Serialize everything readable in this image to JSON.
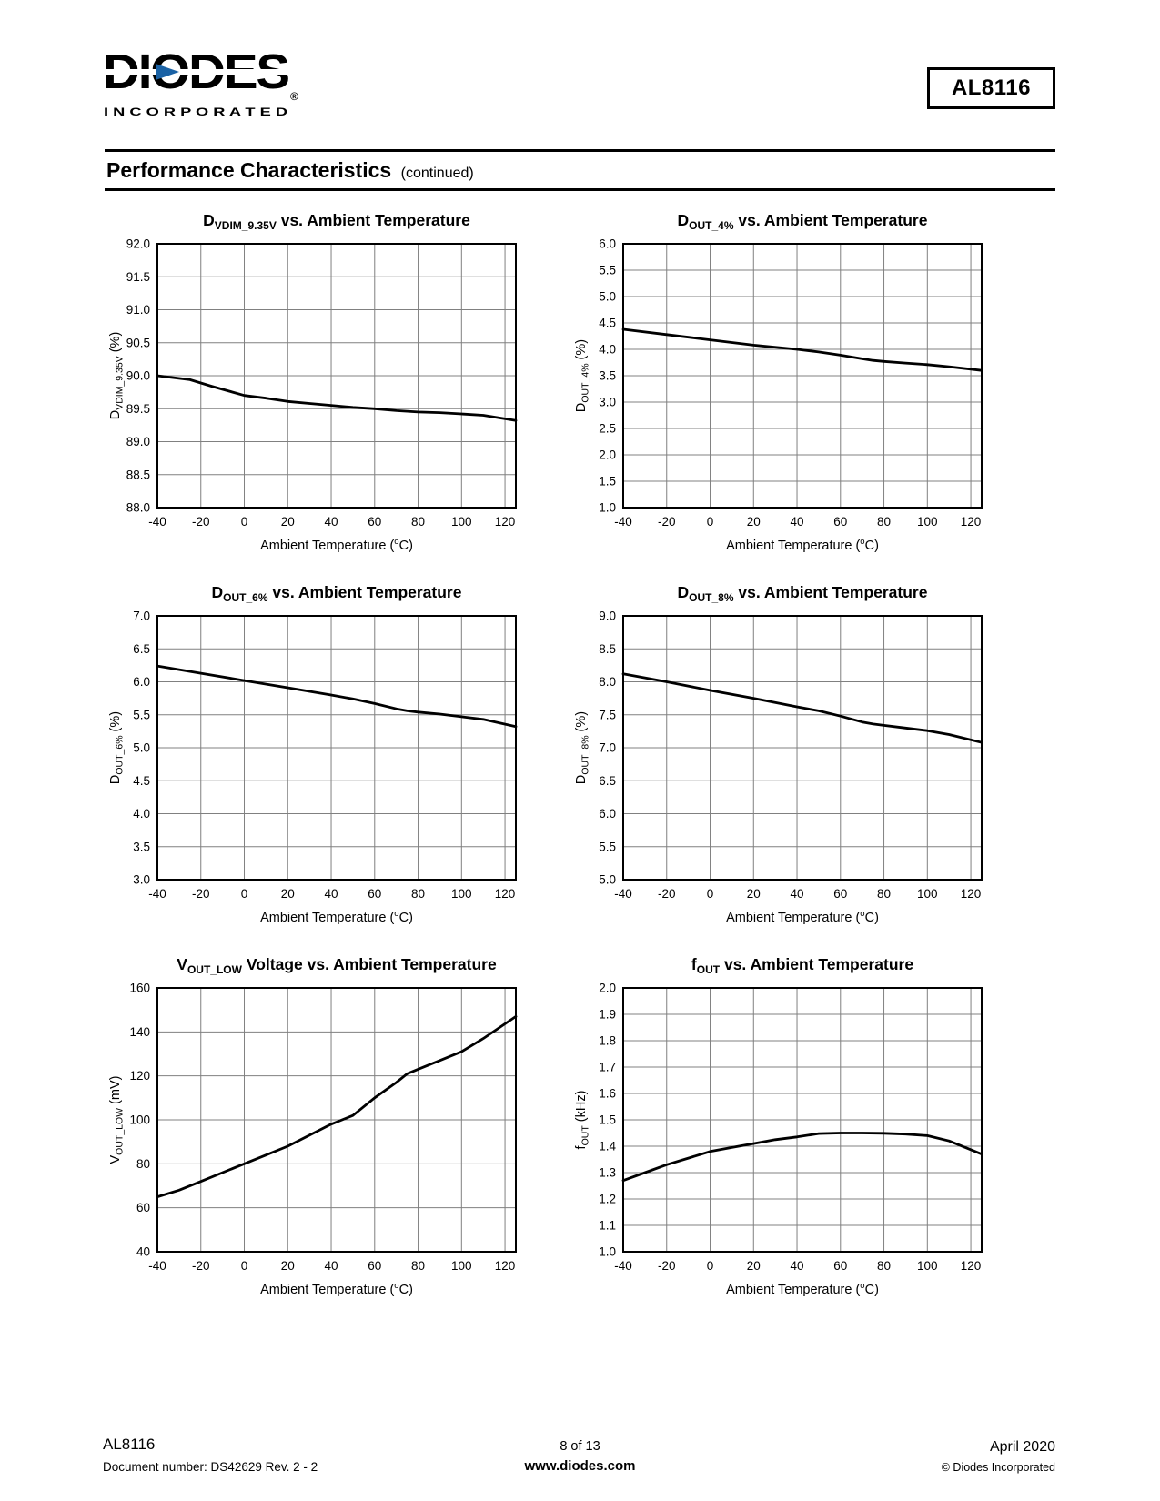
{
  "page": {
    "product": "AL8116",
    "logo": {
      "text": "DIODES",
      "sub": "I N C O R P O R A T E D",
      "reg": "®"
    },
    "section_title": "Performance Characteristics",
    "section_subtitle": "(continued)",
    "footer": {
      "left_line1": "AL8116",
      "left_line2": "Document number: DS42629 Rev. 2 - 2",
      "center_line1": "8 of 13",
      "center_line2": "www.diodes.com",
      "right_line1": "April 2020",
      "right_line2": "© Diodes Incorporated"
    },
    "colors": {
      "logo_blue": "#1A62A5",
      "logo_olive": "#8B8642",
      "grid": "#808080",
      "trace": "#000000"
    }
  },
  "chart_data": [
    {
      "type": "line",
      "title": {
        "main": "D",
        "sub": "VDIM_9.35V",
        "rest": " vs. Ambient Temperature"
      },
      "ylabel": {
        "main": "D",
        "sub": "VDIM_9.35V",
        "rest": " (%)"
      },
      "xlabel": {
        "pre": "Ambient Temperature (",
        "sup": "o",
        "post": "C)"
      },
      "xlim": [
        -40,
        125
      ],
      "ylim": [
        88.0,
        92.0
      ],
      "xticks": [
        -40,
        -20,
        0,
        20,
        40,
        60,
        80,
        100,
        120
      ],
      "yticks": [
        "88.0",
        "88.5",
        "89.0",
        "89.5",
        "90.0",
        "90.5",
        "91.0",
        "91.5",
        "92.0"
      ],
      "grid": true,
      "legend": null,
      "x": [
        -40,
        -25,
        -15,
        0,
        10,
        20,
        30,
        40,
        50,
        60,
        70,
        80,
        90,
        100,
        110,
        125
      ],
      "y": [
        90.0,
        89.94,
        89.84,
        89.7,
        89.66,
        89.61,
        89.58,
        89.55,
        89.52,
        89.5,
        89.47,
        89.45,
        89.44,
        89.42,
        89.4,
        89.32
      ]
    },
    {
      "type": "line",
      "title": {
        "main": "D",
        "sub": "OUT_4%",
        "rest": " vs. Ambient Temperature"
      },
      "ylabel": {
        "main": "D",
        "sub": "OUT_4%",
        "rest": " (%)"
      },
      "xlabel": {
        "pre": "Ambient Temperature (",
        "sup": "o",
        "post": "C)"
      },
      "xlim": [
        -40,
        125
      ],
      "ylim": [
        1.0,
        6.0
      ],
      "xticks": [
        -40,
        -20,
        0,
        20,
        40,
        60,
        80,
        100,
        120
      ],
      "yticks": [
        "1.0",
        "1.5",
        "2.0",
        "2.5",
        "3.0",
        "3.5",
        "4.0",
        "4.5",
        "5.0",
        "5.5",
        "6.0"
      ],
      "grid": true,
      "legend": null,
      "x": [
        -40,
        -20,
        0,
        20,
        40,
        50,
        60,
        70,
        75,
        80,
        90,
        100,
        110,
        125
      ],
      "y": [
        4.38,
        4.28,
        4.18,
        4.08,
        4.0,
        3.95,
        3.89,
        3.82,
        3.79,
        3.77,
        3.74,
        3.71,
        3.67,
        3.6
      ]
    },
    {
      "type": "line",
      "title": {
        "main": "D",
        "sub": "OUT_6%",
        "rest": " vs. Ambient Temperature"
      },
      "ylabel": {
        "main": "D",
        "sub": "OUT_6%",
        "rest": " (%)"
      },
      "xlabel": {
        "pre": "Ambient Temperature (",
        "sup": "o",
        "post": "C)"
      },
      "xlim": [
        -40,
        125
      ],
      "ylim": [
        3.0,
        7.0
      ],
      "xticks": [
        -40,
        -20,
        0,
        20,
        40,
        60,
        80,
        100,
        120
      ],
      "yticks": [
        "3.0",
        "3.5",
        "4.0",
        "4.5",
        "5.0",
        "5.5",
        "6.0",
        "6.5",
        "7.0"
      ],
      "grid": true,
      "legend": null,
      "x": [
        -40,
        -20,
        0,
        20,
        40,
        50,
        60,
        70,
        75,
        80,
        90,
        100,
        110,
        125
      ],
      "y": [
        6.24,
        6.13,
        6.02,
        5.91,
        5.8,
        5.74,
        5.67,
        5.59,
        5.56,
        5.54,
        5.51,
        5.47,
        5.43,
        5.32
      ]
    },
    {
      "type": "line",
      "title": {
        "main": "D",
        "sub": "OUT_8%",
        "rest": " vs. Ambient Temperature"
      },
      "ylabel": {
        "main": "D",
        "sub": "OUT_8%",
        "rest": " (%)"
      },
      "xlabel": {
        "pre": "Ambient Temperature (",
        "sup": "o",
        "post": "C)"
      },
      "xlim": [
        -40,
        125
      ],
      "ylim": [
        5.0,
        9.0
      ],
      "xticks": [
        -40,
        -20,
        0,
        20,
        40,
        60,
        80,
        100,
        120
      ],
      "yticks": [
        "5.0",
        "5.5",
        "6.0",
        "6.5",
        "7.0",
        "7.5",
        "8.0",
        "8.5",
        "9.0"
      ],
      "grid": true,
      "legend": null,
      "x": [
        -40,
        -20,
        0,
        20,
        40,
        50,
        60,
        70,
        75,
        80,
        90,
        100,
        110,
        125
      ],
      "y": [
        8.12,
        8.0,
        7.87,
        7.75,
        7.62,
        7.56,
        7.48,
        7.39,
        7.36,
        7.34,
        7.3,
        7.26,
        7.2,
        7.08
      ]
    },
    {
      "type": "line",
      "title": {
        "main": "V",
        "sub": "OUT_LOW",
        "rest": " Voltage vs. Ambient Temperature"
      },
      "ylabel": {
        "main": "V",
        "sub": "OUT_LOW",
        "rest": " (mV)"
      },
      "xlabel": {
        "pre": "Ambient Temperature (",
        "sup": "o",
        "post": "C)"
      },
      "xlim": [
        -40,
        125
      ],
      "ylim": [
        40,
        160
      ],
      "xticks": [
        -40,
        -20,
        0,
        20,
        40,
        60,
        80,
        100,
        120
      ],
      "yticks": [
        "40",
        "60",
        "80",
        "100",
        "120",
        "140",
        "160"
      ],
      "grid": true,
      "legend": null,
      "x": [
        -40,
        -30,
        -20,
        -10,
        0,
        10,
        20,
        30,
        40,
        45,
        50,
        60,
        70,
        75,
        80,
        90,
        100,
        110,
        125
      ],
      "y": [
        65,
        68,
        72,
        76,
        80,
        84,
        88,
        93,
        98,
        100,
        102,
        110,
        117,
        121,
        123,
        127,
        131,
        137,
        147
      ]
    },
    {
      "type": "line",
      "title": {
        "main": "f",
        "sub": "OUT",
        "rest": " vs. Ambient Temperature"
      },
      "ylabel": {
        "main": "f",
        "sub": "OUT",
        "rest": " (kHz)"
      },
      "xlabel": {
        "pre": "Ambient Temperature (",
        "sup": "o",
        "post": "C)"
      },
      "xlim": [
        -40,
        125
      ],
      "ylim": [
        1.0,
        2.0
      ],
      "xticks": [
        -40,
        -20,
        0,
        20,
        40,
        60,
        80,
        100,
        120
      ],
      "yticks": [
        "1.0",
        "1.1",
        "1.2",
        "1.3",
        "1.4",
        "1.5",
        "1.6",
        "1.7",
        "1.8",
        "1.9",
        "2.0"
      ],
      "grid": true,
      "legend": null,
      "x": [
        -40,
        -30,
        -20,
        -10,
        0,
        10,
        20,
        30,
        40,
        50,
        60,
        70,
        80,
        90,
        100,
        110,
        125
      ],
      "y": [
        1.27,
        1.3,
        1.33,
        1.355,
        1.38,
        1.395,
        1.41,
        1.425,
        1.435,
        1.448,
        1.45,
        1.45,
        1.449,
        1.446,
        1.44,
        1.42,
        1.37
      ]
    }
  ]
}
